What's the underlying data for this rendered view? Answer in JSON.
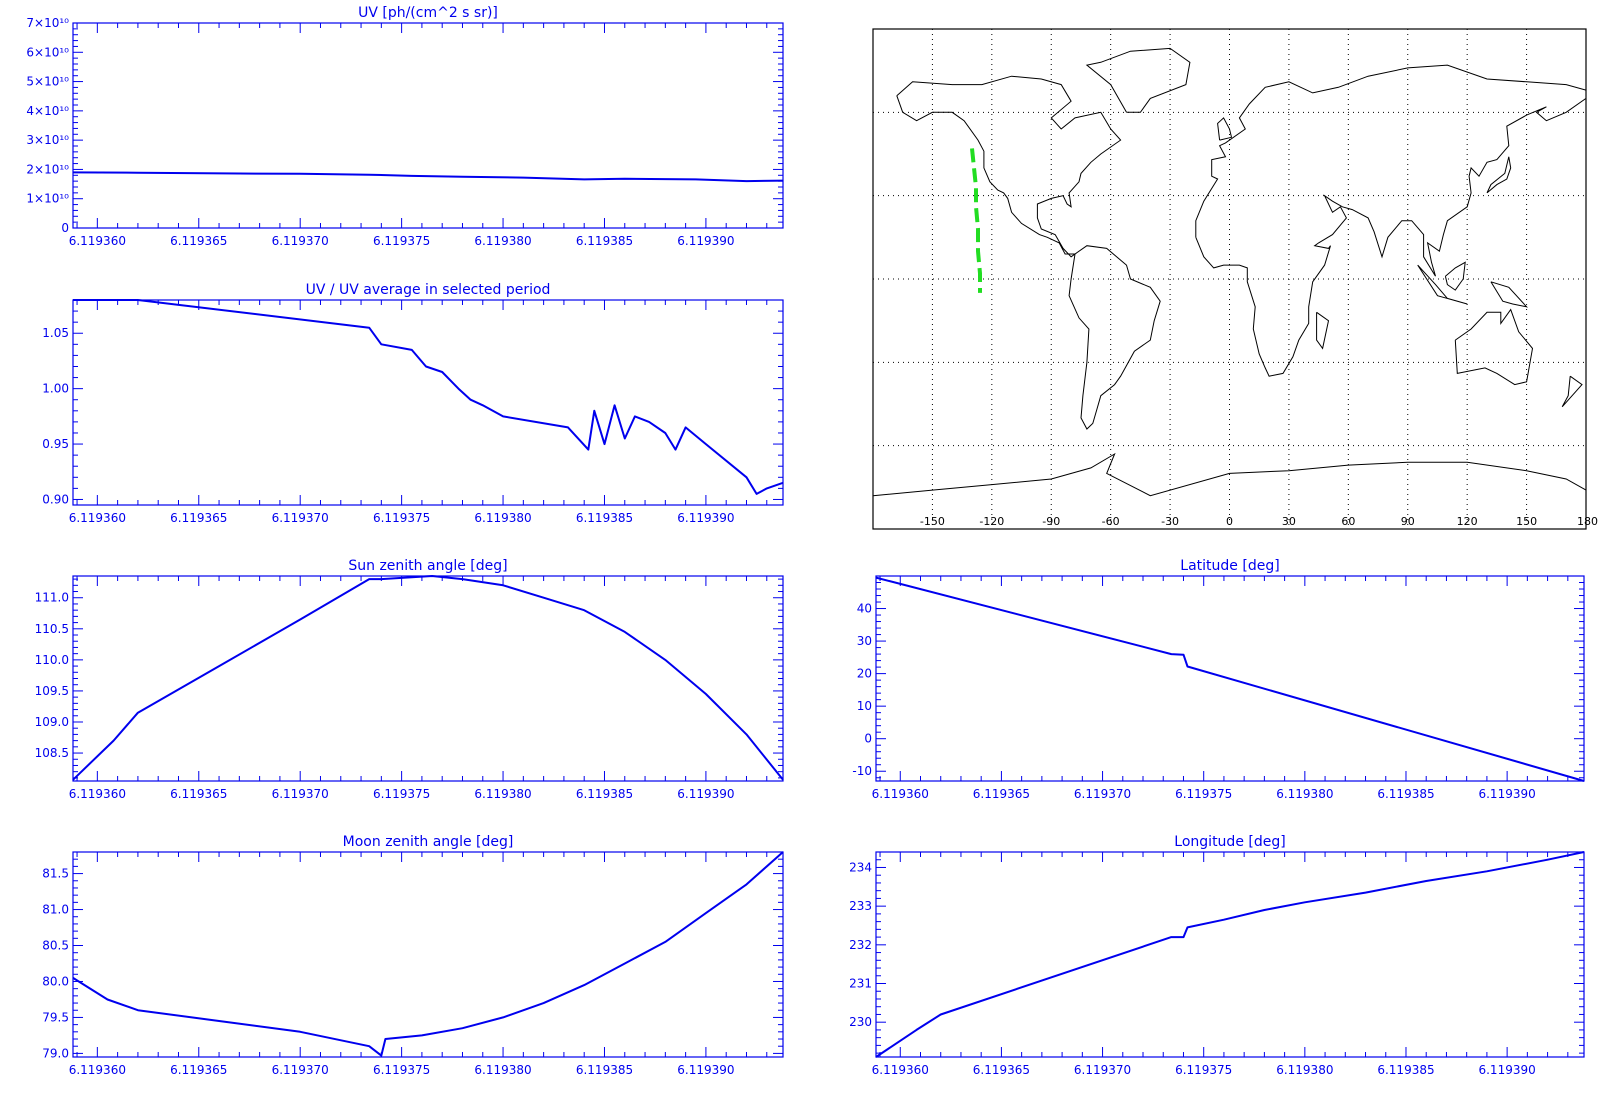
{
  "colors": {
    "plot": "#0000ee",
    "map_land": "#000000",
    "map_track": "#22dd22"
  },
  "chart_data": [
    {
      "id": "uv",
      "type": "line",
      "title": "UV [ph/(cm^2 s sr)]",
      "xlim": [
        6.1193588,
        6.1193938
      ],
      "ylim": [
        0,
        70000000000
      ],
      "x_ticks": [
        6.11936,
        6.119365,
        6.11937,
        6.119375,
        6.11938,
        6.119385,
        6.11939
      ],
      "x_tick_labels": [
        "6.119360",
        "6.119365",
        "6.119370",
        "6.119375",
        "6.119380",
        "6.119385",
        "6.119390"
      ],
      "y_ticks": [
        0,
        10000000000,
        20000000000,
        30000000000,
        40000000000,
        50000000000,
        60000000000,
        70000000000
      ],
      "y_tick_labels": [
        "0",
        "1×10¹⁰",
        "2×10¹⁰",
        "3×10¹⁰",
        "4×10¹⁰",
        "5×10¹⁰",
        "6×10¹⁰",
        "7×10¹⁰"
      ],
      "series": [
        {
          "x": [
            6.1193588,
            6.119362,
            6.119367,
            6.11937,
            6.1193734,
            6.1193755,
            6.119378,
            6.119381,
            6.119384,
            6.119386,
            6.1193895,
            6.119392,
            6.1193938
          ],
          "y": [
            19000000000,
            18900000000,
            18600000000,
            18500000000,
            18200000000,
            17800000000,
            17500000000,
            17200000000,
            16600000000,
            16800000000,
            16600000000,
            16000000000,
            16200000000
          ]
        }
      ]
    },
    {
      "id": "uv-ratio",
      "type": "line",
      "title": "UV / UV average in selected period",
      "xlim": [
        6.1193588,
        6.1193938
      ],
      "ylim": [
        0.895,
        1.08
      ],
      "x_ticks": [
        6.11936,
        6.119365,
        6.11937,
        6.119375,
        6.11938,
        6.119385,
        6.11939
      ],
      "x_tick_labels": [
        "6.119360",
        "6.119365",
        "6.119370",
        "6.119375",
        "6.119380",
        "6.119385",
        "6.119390"
      ],
      "y_ticks": [
        0.9,
        0.95,
        1.0,
        1.05
      ],
      "y_tick_labels": [
        "0.90",
        "0.95",
        "1.00",
        "1.05"
      ],
      "series": [
        {
          "x": [
            6.1193588,
            6.119362,
            6.1193734,
            6.119374,
            6.1193755,
            6.1193762,
            6.119377,
            6.1193778,
            6.1193784,
            6.119379,
            6.11938,
            6.1193832,
            6.1193842,
            6.1193845,
            6.119385,
            6.1193855,
            6.119386,
            6.1193865,
            6.1193872,
            6.119388,
            6.1193885,
            6.119389,
            6.11939,
            6.119392,
            6.1193925,
            6.119393,
            6.1193938
          ],
          "y": [
            1.08,
            1.08,
            1.055,
            1.04,
            1.035,
            1.02,
            1.015,
            1.0,
            0.99,
            0.985,
            0.975,
            0.965,
            0.945,
            0.98,
            0.95,
            0.985,
            0.955,
            0.975,
            0.97,
            0.96,
            0.945,
            0.965,
            0.95,
            0.92,
            0.905,
            0.91,
            0.915
          ]
        }
      ]
    },
    {
      "id": "sun-zenith",
      "type": "line",
      "title": "Sun zenith angle [deg]",
      "xlim": [
        6.1193588,
        6.1193938
      ],
      "ylim": [
        108.05,
        111.35
      ],
      "x_ticks": [
        6.11936,
        6.119365,
        6.11937,
        6.119375,
        6.11938,
        6.119385,
        6.11939
      ],
      "x_tick_labels": [
        "6.119360",
        "6.119365",
        "6.119370",
        "6.119375",
        "6.119380",
        "6.119385",
        "6.119390"
      ],
      "y_ticks": [
        108.5,
        109.0,
        109.5,
        110.0,
        110.5,
        111.0
      ],
      "y_tick_labels": [
        "108.5",
        "109.0",
        "109.5",
        "110.0",
        "110.5",
        "111.0"
      ],
      "series": [
        {
          "x": [
            6.1193588,
            6.1193608,
            6.119362,
            6.119366,
            6.11937,
            6.1193734,
            6.119374,
            6.1193765,
            6.119378,
            6.11938,
            6.119382,
            6.119384,
            6.119386,
            6.119388,
            6.11939,
            6.119392,
            6.1193938
          ],
          "y": [
            108.07,
            108.7,
            109.15,
            109.9,
            110.65,
            111.3,
            111.3,
            111.35,
            111.3,
            111.2,
            111.0,
            110.8,
            110.45,
            110.0,
            109.45,
            108.8,
            108.07
          ]
        }
      ]
    },
    {
      "id": "latitude",
      "type": "line",
      "title": "Latitude [deg]",
      "xlim": [
        6.1193588,
        6.1193938
      ],
      "ylim": [
        -13,
        50
      ],
      "x_ticks": [
        6.11936,
        6.119365,
        6.11937,
        6.119375,
        6.11938,
        6.119385,
        6.11939
      ],
      "x_tick_labels": [
        "6.119360",
        "6.119365",
        "6.119370",
        "6.119375",
        "6.119380",
        "6.119385",
        "6.119390"
      ],
      "y_ticks": [
        -10,
        0,
        10,
        20,
        30,
        40
      ],
      "y_tick_labels": [
        "-10",
        "0",
        "10",
        "20",
        "30",
        "40"
      ],
      "series": [
        {
          "x": [
            6.1193588,
            6.1193734,
            6.119374,
            6.1193742,
            6.1193938
          ],
          "y": [
            49.5,
            26,
            25.8,
            22.2,
            -13
          ]
        }
      ]
    },
    {
      "id": "moon-zenith",
      "type": "line",
      "title": "Moon zenith angle [deg]",
      "xlim": [
        6.1193588,
        6.1193938
      ],
      "ylim": [
        78.95,
        81.8
      ],
      "x_ticks": [
        6.11936,
        6.119365,
        6.11937,
        6.119375,
        6.11938,
        6.119385,
        6.11939
      ],
      "x_tick_labels": [
        "6.119360",
        "6.119365",
        "6.119370",
        "6.119375",
        "6.119380",
        "6.119385",
        "6.119390"
      ],
      "y_ticks": [
        79.0,
        79.5,
        80.0,
        80.5,
        81.0,
        81.5
      ],
      "y_tick_labels": [
        "79.0",
        "79.5",
        "80.0",
        "80.5",
        "81.0",
        "81.5"
      ],
      "series": [
        {
          "x": [
            6.1193588,
            6.1193605,
            6.119362,
            6.119366,
            6.11937,
            6.1193734,
            6.119374,
            6.1193742,
            6.119376,
            6.119378,
            6.11938,
            6.119382,
            6.119384,
            6.119386,
            6.119388,
            6.11939,
            6.119392,
            6.1193938
          ],
          "y": [
            80.05,
            79.75,
            79.6,
            79.45,
            79.3,
            79.1,
            78.97,
            79.2,
            79.25,
            79.35,
            79.5,
            79.7,
            79.95,
            80.25,
            80.55,
            80.95,
            81.35,
            81.8
          ]
        }
      ]
    },
    {
      "id": "longitude",
      "type": "line",
      "title": "Longitude [deg]",
      "xlim": [
        6.1193588,
        6.1193938
      ],
      "ylim": [
        229.1,
        234.4
      ],
      "x_ticks": [
        6.11936,
        6.119365,
        6.11937,
        6.119375,
        6.11938,
        6.119385,
        6.11939
      ],
      "x_tick_labels": [
        "6.119360",
        "6.119365",
        "6.119370",
        "6.119375",
        "6.119380",
        "6.119385",
        "6.119390"
      ],
      "y_ticks": [
        230,
        231,
        232,
        233,
        234
      ],
      "y_tick_labels": [
        "230",
        "231",
        "232",
        "233",
        "234"
      ],
      "series": [
        {
          "x": [
            6.1193588,
            6.1193608,
            6.119362,
            6.1193734,
            6.119374,
            6.1193742,
            6.119376,
            6.119378,
            6.11938,
            6.119383,
            6.119386,
            6.119389,
            6.119392,
            6.1193938
          ],
          "y": [
            229.1,
            229.8,
            230.2,
            232.2,
            232.2,
            232.45,
            232.65,
            232.9,
            233.1,
            233.35,
            233.65,
            233.9,
            234.2,
            234.4
          ]
        }
      ]
    }
  ],
  "map": {
    "x_ticks": [
      -150,
      -120,
      -90,
      -60,
      -30,
      0,
      30,
      60,
      90,
      120,
      150,
      180
    ],
    "x_tick_labels": [
      "-150",
      "-120",
      "-90",
      "-60",
      "-30",
      "0",
      "30",
      "60",
      "90",
      "120",
      "150",
      "180"
    ],
    "track": [
      [
        -130,
        47
      ],
      [
        -129,
        40
      ],
      [
        -128,
        33
      ],
      [
        -128,
        26
      ],
      [
        -127,
        18
      ],
      [
        -127,
        10
      ],
      [
        -126,
        2
      ],
      [
        -126,
        -5
      ]
    ]
  }
}
